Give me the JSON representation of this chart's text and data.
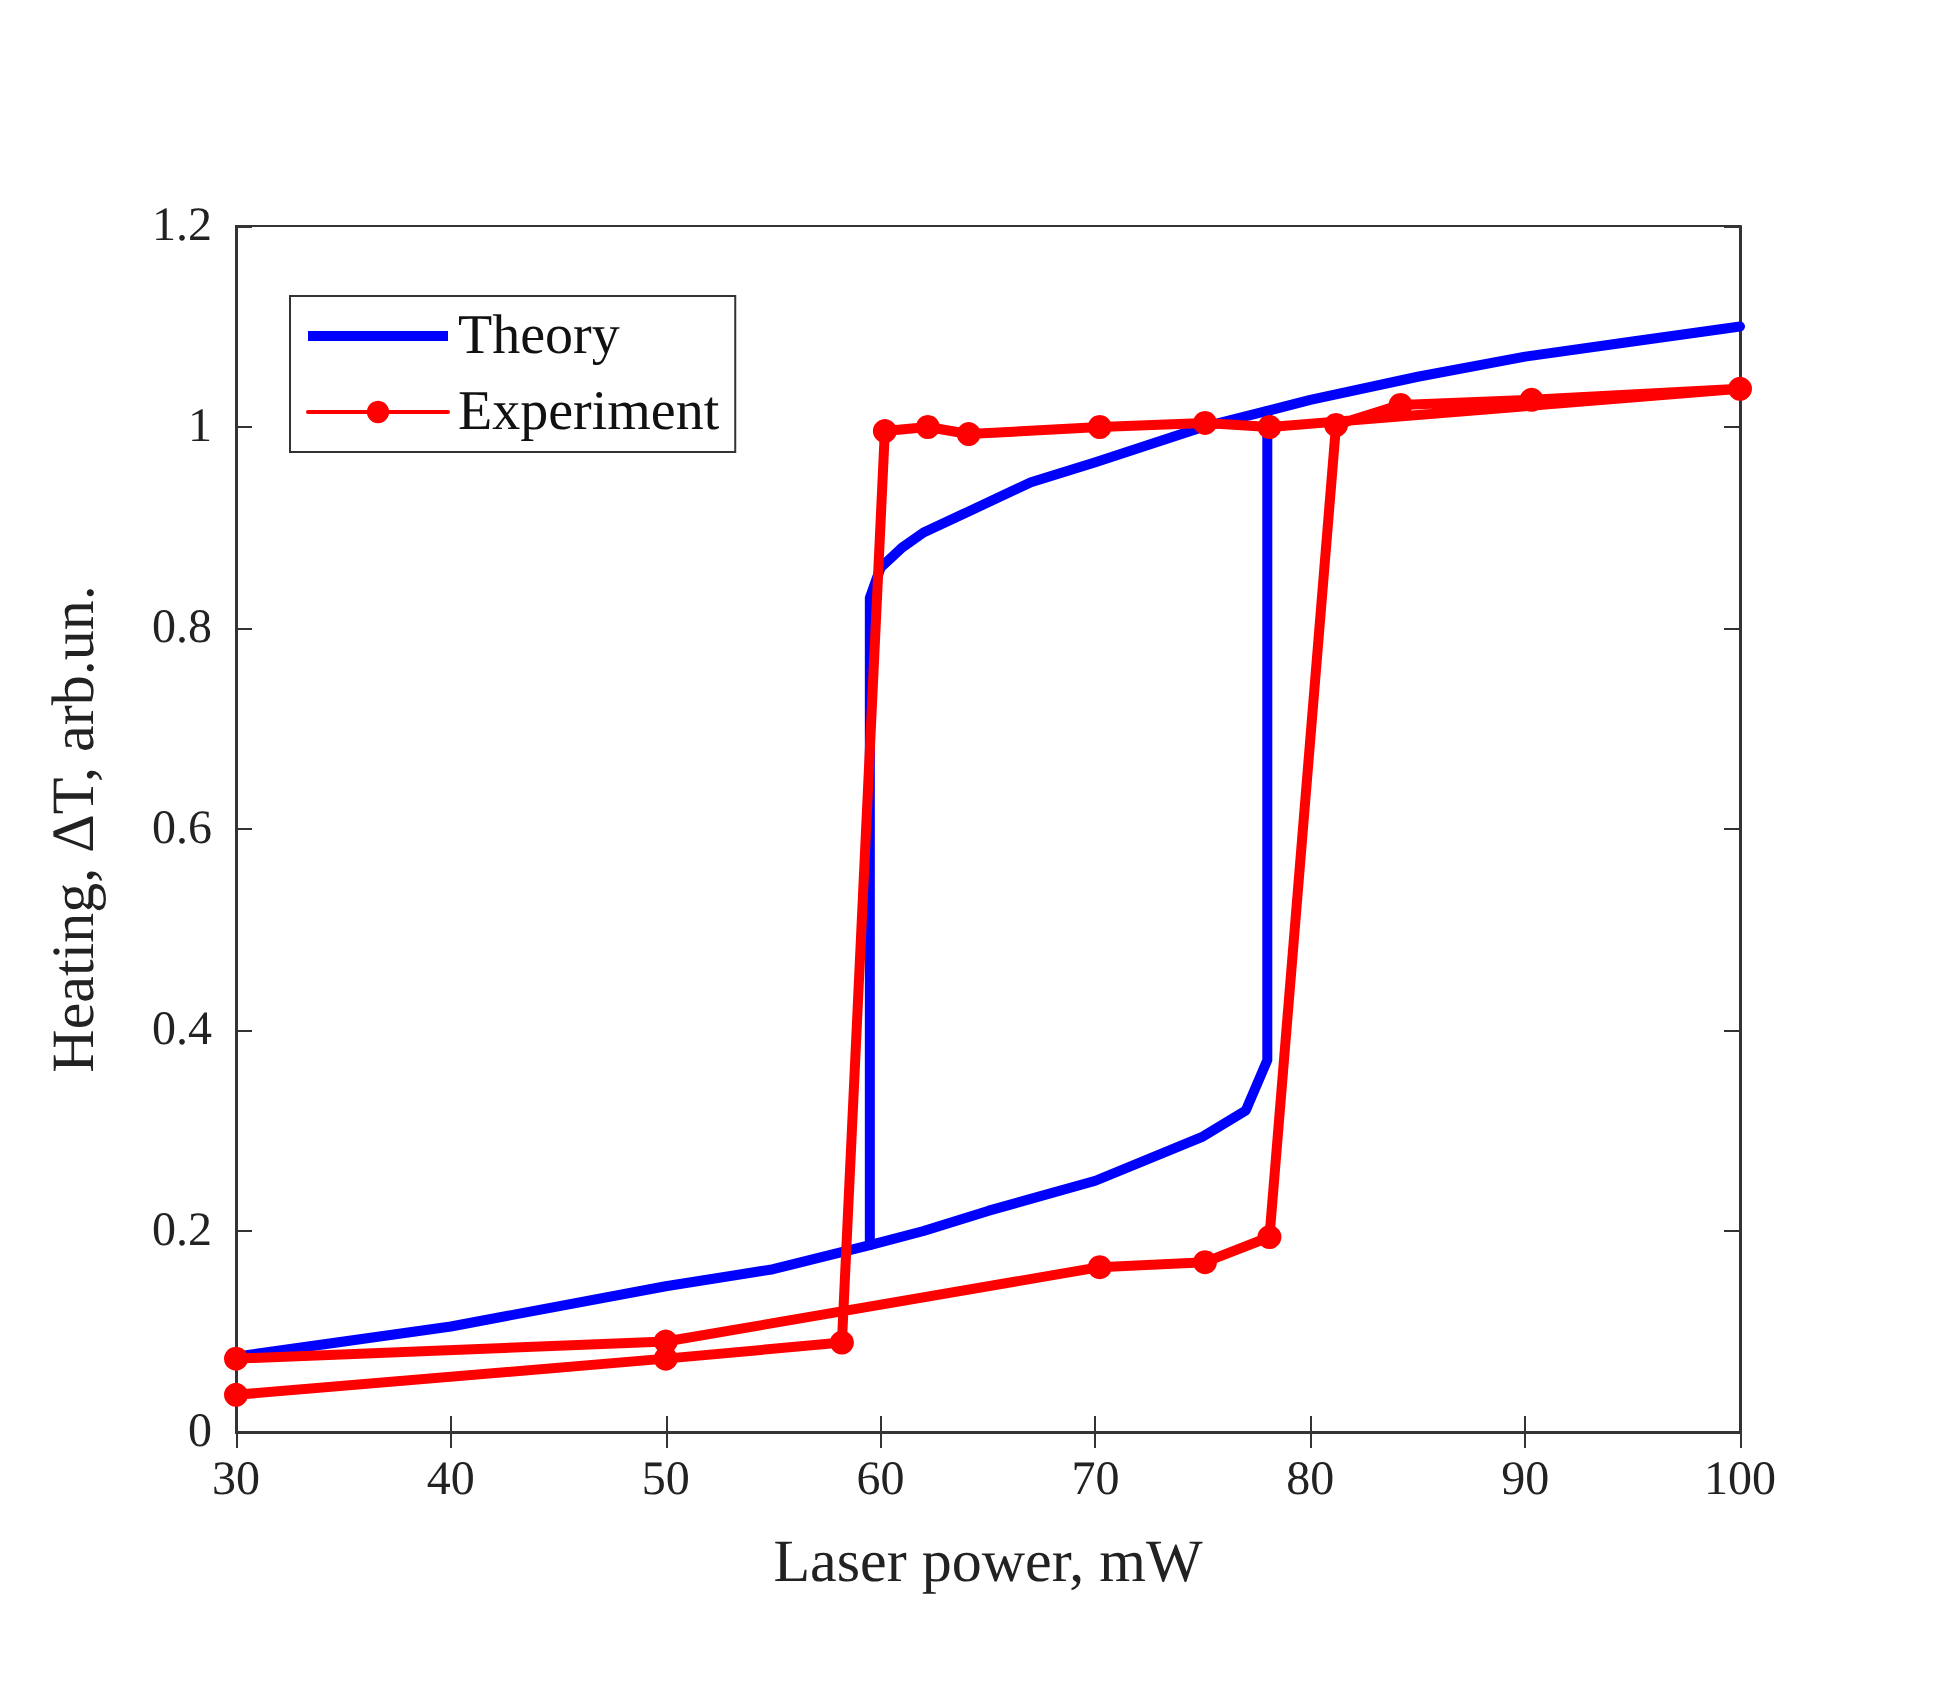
{
  "chart_data": {
    "type": "line",
    "xlabel": "Laser power, mW",
    "ylabel": "Heating, ΔT, arb.un.",
    "xlim": [
      30,
      100
    ],
    "xticks": [
      30,
      40,
      50,
      60,
      70,
      80,
      90,
      100
    ],
    "ylim": [
      0,
      1.2
    ],
    "yticks": [
      {
        "value": 0,
        "label": "0"
      },
      0.2,
      0.4,
      0.6,
      0.8,
      {
        "value": 1,
        "label": "1"
      },
      1.2
    ],
    "grid": false,
    "legend": "top left",
    "line_style": "solid",
    "series": [
      {
        "name": "Theory",
        "color": "#0000ff",
        "marker": "none",
        "x": [
          30,
          40,
          50,
          55,
          58,
          59.5,
          59.5,
          60,
          61,
          62,
          64,
          67,
          70,
          75,
          78,
          80,
          85,
          90,
          95,
          100
        ],
        "values": [
          0.075,
          0.105,
          0.145,
          0.162,
          0.178,
          0.186,
          0.83,
          0.86,
          0.88,
          0.895,
          0.915,
          0.945,
          0.965,
          1.0,
          1.016,
          1.027,
          1.05,
          1.07,
          1.085,
          1.1
        ]
      },
      {
        "color": "#0000ff",
        "marker": "none",
        "x": [
          59.5,
          62,
          65,
          70,
          75,
          77,
          78,
          78
        ],
        "values": [
          0.186,
          0.2,
          0.22,
          0.25,
          0.294,
          0.32,
          0.37,
          1.016
        ]
      },
      {
        "name": "Experiment",
        "color": "#ff0000",
        "marker": "circle",
        "x": [
          30,
          50,
          70.2,
          75.1,
          78.1,
          81.2,
          84.2,
          90.3,
          100,
          78.1,
          75.1,
          70.2,
          64.1,
          62.2,
          60.2,
          58.2,
          50,
          30
        ],
        "values": [
          0.073,
          0.09,
          0.164,
          0.169,
          0.194,
          1.002,
          1.022,
          1.027,
          1.038,
          1.0,
          1.004,
          1.0,
          0.993,
          1.0,
          0.996,
          0.089,
          0.073,
          0.037
        ]
      }
    ]
  }
}
